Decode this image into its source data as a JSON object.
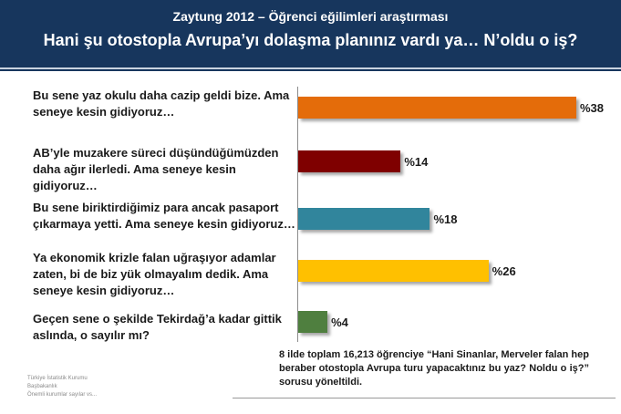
{
  "header": {
    "subtitle": "Zaytung 2012 – Öğrenci eğilimleri araştırması",
    "title": "Hani şu otostopla Avrupa’yı dolaşma planınız vardı ya… N’oldu o iş?"
  },
  "chart_data": {
    "type": "bar",
    "orientation": "horizontal",
    "categories": [
      "Bu sene yaz okulu daha cazip geldi bize. Ama seneye kesin gidiyoruz…",
      "AB’yle muzakere süreci düşündüğümüzden daha ağır ilerledi. Ama seneye kesin gidiyoruz…",
      "Bu sene biriktirdiğimiz para ancak pasaport çıkarmaya yetti. Ama seneye kesin gidiyoruz…",
      "Ya ekonomik krizle falan uğraşıyor adamlar zaten, bi de biz yük olmayalım dedik. Ama seneye kesin gidiyoruz…",
      "Geçen sene o şekilde Tekirdağ’a kadar gittik aslında, o sayılır mı?"
    ],
    "values": [
      38,
      14,
      18,
      26,
      4
    ],
    "value_labels": [
      "%38",
      "%14",
      "%18",
      "%26",
      "%4"
    ],
    "colors": [
      "#e46c0a",
      "#7f0000",
      "#31859c",
      "#ffc000",
      "#4f7f3f"
    ],
    "xlim": [
      0,
      38
    ],
    "grid": false,
    "legend": "none"
  },
  "note": "8 ilde toplam 16,213 öğrenciye “Hani Sinanlar, Merveler falan hep beraber otostopla Avrupa turu yapacaktınız bu yaz? Noldu o iş?” sorusu yöneltildi.",
  "source": [
    "Türkiye İstatistik Kurumu",
    "Başbakanlık",
    "Önemli kurumlar sayılar vs..."
  ]
}
